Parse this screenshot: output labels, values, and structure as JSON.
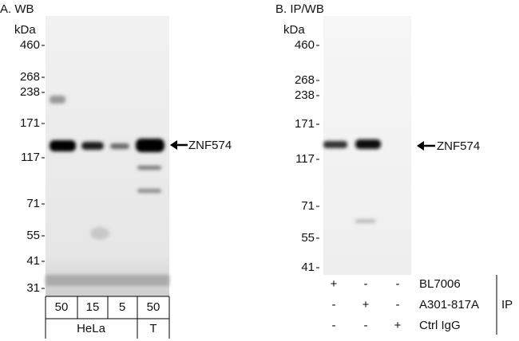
{
  "panel_a": {
    "title": "A. WB",
    "unit": "kDa",
    "markers": [
      "460",
      "268",
      "238",
      "171",
      "117",
      "71",
      "55",
      "41",
      "31"
    ],
    "target": "ZNF574",
    "lanes": [
      "50",
      "15",
      "5",
      "50"
    ],
    "cell_lines": [
      "HeLa",
      "T"
    ]
  },
  "panel_b": {
    "title": "B. IP/WB",
    "unit": "kDa",
    "markers": [
      "460",
      "268",
      "238",
      "171",
      "117",
      "71",
      "55",
      "41"
    ],
    "target": "ZNF574",
    "rows": [
      {
        "signs": [
          "+",
          "-",
          "-"
        ],
        "label": "BL7006"
      },
      {
        "signs": [
          "-",
          "+",
          "-"
        ],
        "label": "A301-817A"
      },
      {
        "signs": [
          "-",
          "-",
          "+"
        ],
        "label": "Ctrl IgG"
      }
    ],
    "group": "IP"
  }
}
